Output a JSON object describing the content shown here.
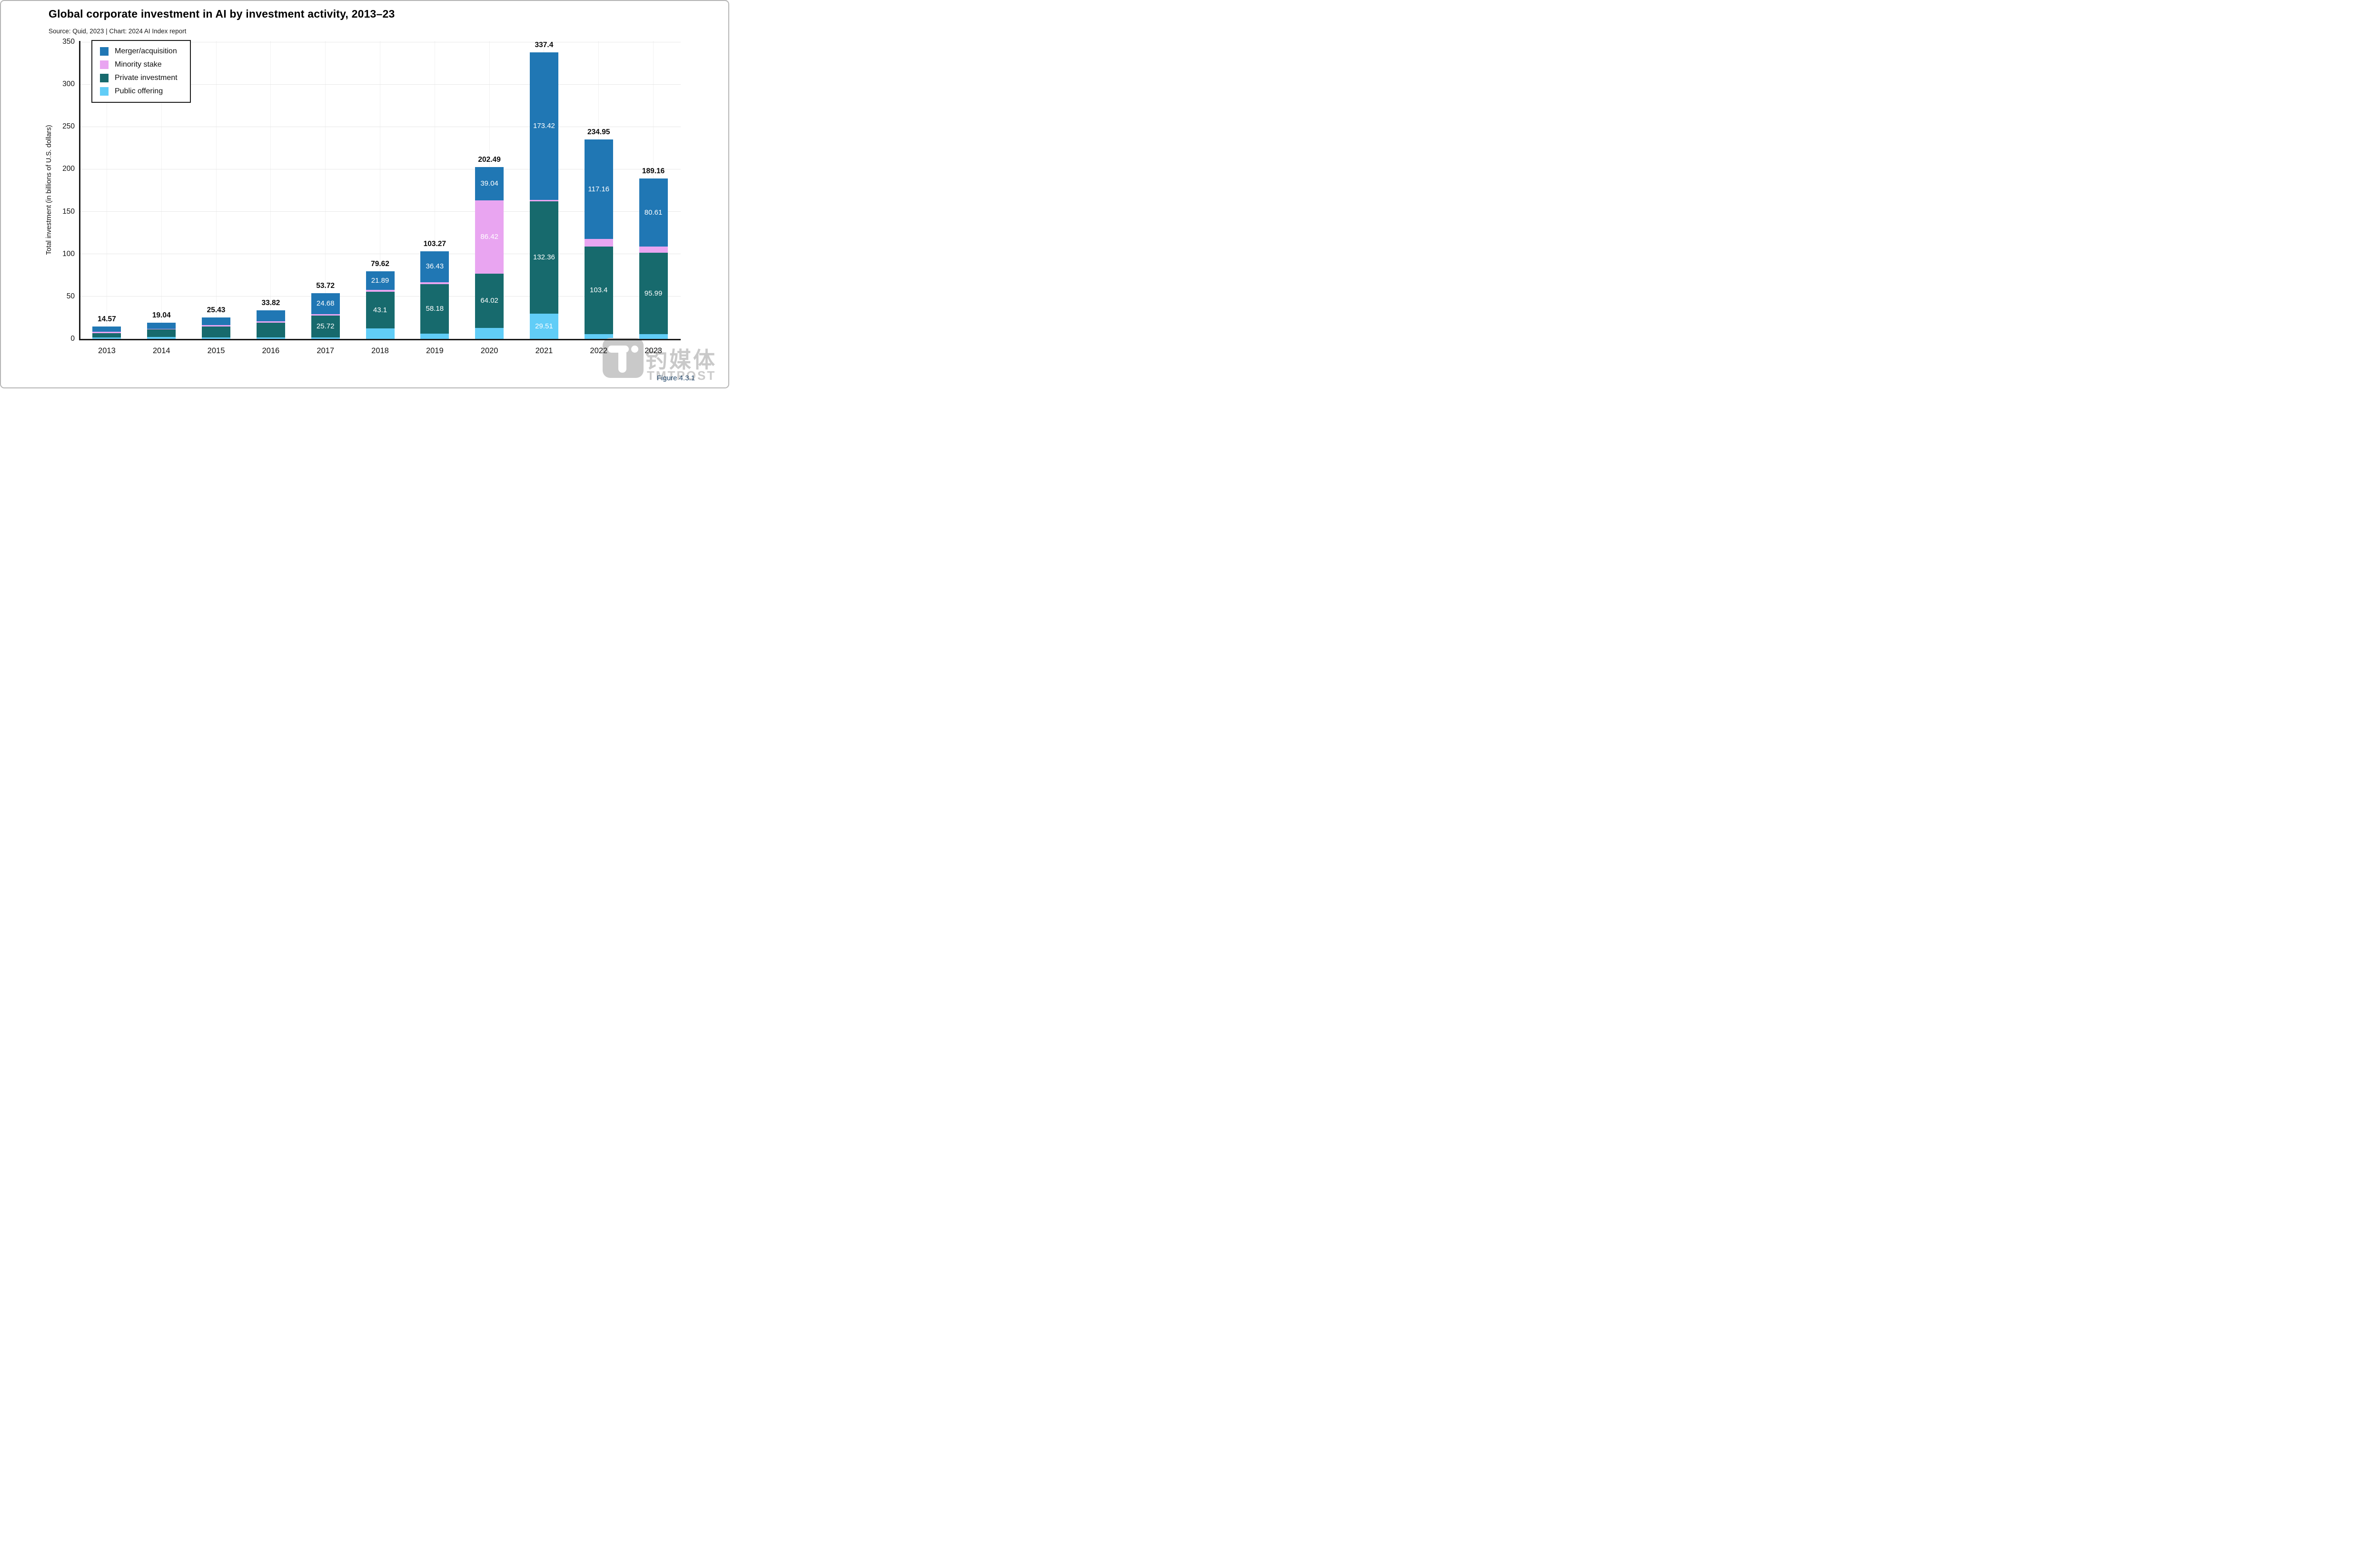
{
  "header": {
    "title": "Global corporate investment in AI by investment activity, 2013–23",
    "source": "Source: Quid, 2023 | Chart: 2024 AI Index report"
  },
  "y_axis": {
    "title": "Total investment (in billions of U.S. dollars)",
    "tick_labels": [
      "0",
      "50",
      "100",
      "150",
      "200",
      "250",
      "300",
      "350"
    ]
  },
  "legend": {
    "items": [
      {
        "label": "Merger/acquisition",
        "color": "#2077B4"
      },
      {
        "label": "Minority stake",
        "color": "#E9A5F1"
      },
      {
        "label": "Private investment",
        "color": "#176A6D"
      },
      {
        "label": "Public offering",
        "color": "#61CDF7"
      }
    ]
  },
  "chart_data": {
    "type": "bar",
    "stacked": true,
    "title": "Global corporate investment in AI by investment activity, 2013–23",
    "xlabel": "",
    "ylabel": "Total investment (in billions of U.S. dollars)",
    "ylim": [
      0,
      350
    ],
    "yticks": [
      0,
      50,
      100,
      150,
      200,
      250,
      300,
      350
    ],
    "grid": true,
    "legend_position": "top-left",
    "categories": [
      "2013",
      "2014",
      "2015",
      "2016",
      "2017",
      "2018",
      "2019",
      "2020",
      "2021",
      "2022",
      "2023"
    ],
    "series": [
      {
        "name": "Public offering",
        "color": "#61CDF7",
        "values": [
          1.8,
          2.1,
          1.9,
          1.7,
          1.72,
          12.3,
          6.3,
          13.01,
          29.51,
          5.59,
          5.4
        ],
        "labels": [
          null,
          null,
          null,
          null,
          null,
          null,
          null,
          null,
          "29.51",
          null,
          null
        ]
      },
      {
        "name": "Private investment",
        "color": "#176A6D",
        "values": [
          4.8,
          9.44,
          12.93,
          17.1,
          25.72,
          43.1,
          58.18,
          64.02,
          132.36,
          103.4,
          95.99
        ],
        "labels": [
          null,
          null,
          null,
          null,
          "25.72",
          "43.1",
          "58.18",
          "64.02",
          "132.36",
          "103.4",
          "95.99"
        ]
      },
      {
        "name": "Minority stake",
        "color": "#E9A5F1",
        "values": [
          1.8,
          0.1,
          1.3,
          1.9,
          1.6,
          2.33,
          2.36,
          86.42,
          2.11,
          8.8,
          7.16
        ],
        "labels": [
          null,
          null,
          null,
          null,
          null,
          null,
          null,
          "86.42",
          null,
          null,
          null
        ]
      },
      {
        "name": "Merger/acquisition",
        "color": "#2077B4",
        "values": [
          6.17,
          7.4,
          9.3,
          13.12,
          24.68,
          21.89,
          36.43,
          39.04,
          173.42,
          117.16,
          80.61
        ],
        "labels": [
          null,
          null,
          null,
          null,
          "24.68",
          "21.89",
          "36.43",
          "39.04",
          "173.42",
          "117.16",
          "80.61"
        ]
      }
    ],
    "totals": [
      "14.57",
      "19.04",
      "25.43",
      "33.82",
      "53.72",
      "79.62",
      "103.27",
      "202.49",
      "337.4",
      "234.95",
      "189.16"
    ]
  },
  "watermark": {
    "cn": "钓媒体",
    "en": "TMTPOST"
  },
  "figure_label": "Figure 4.3.1"
}
